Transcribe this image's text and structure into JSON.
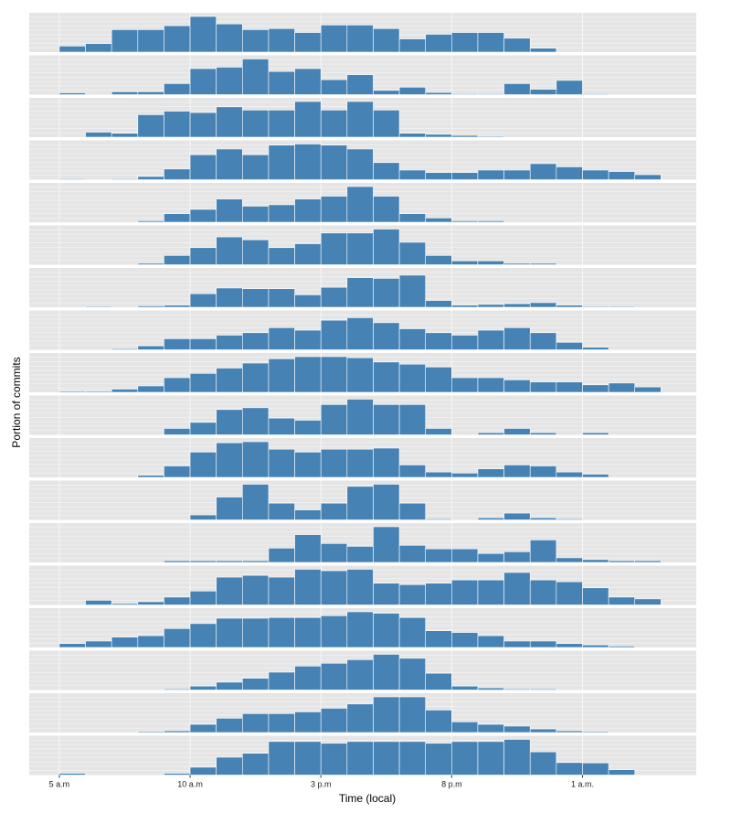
{
  "chart_data": {
    "type": "bar",
    "layout": "small-multiples",
    "xlabel": "Time (local)",
    "ylabel": "Portion of commits",
    "x_ticks": [
      {
        "label": "5 a.m",
        "hour": 5
      },
      {
        "label": "10 a.m",
        "hour": 10
      },
      {
        "label": "3 p.m",
        "hour": 15
      },
      {
        "label": "8 p.m",
        "hour": 20
      },
      {
        "label": "1 a.m.",
        "hour": 25
      }
    ],
    "bins_start_hour": 5,
    "bins_end_hour": 28,
    "ylim": [
      0,
      1
    ],
    "grid": true,
    "colors": {
      "bar": "#4682b4",
      "panel_bg": "#e5e5e5",
      "grid": "#f5f5f5"
    },
    "series": [
      {
        "values": [
          0.17,
          0.24,
          0.63,
          0.63,
          0.74,
          1.0,
          0.79,
          0.63,
          0.66,
          0.55,
          0.76,
          0.76,
          0.66,
          0.37,
          0.5,
          0.55,
          0.55,
          0.39,
          0.11,
          0,
          0,
          0,
          0
        ]
      },
      {
        "values": [
          0.05,
          0,
          0.08,
          0.08,
          0.31,
          0.73,
          0.77,
          1.0,
          0.65,
          0.73,
          0.42,
          0.56,
          0.12,
          0.21,
          0.06,
          0.02,
          0.02,
          0.31,
          0.15,
          0.4,
          0.02,
          0,
          0
        ]
      },
      {
        "values": [
          0,
          0.14,
          0.11,
          0.63,
          0.73,
          0.69,
          0.85,
          0.76,
          0.76,
          1.0,
          0.76,
          1.0,
          0.76,
          0.11,
          0.08,
          0.05,
          0.02,
          0,
          0,
          0,
          0,
          0,
          0
        ]
      },
      {
        "values": [
          0.02,
          0,
          0.02,
          0.09,
          0.3,
          0.7,
          0.86,
          0.7,
          0.97,
          1.0,
          0.97,
          0.86,
          0.48,
          0.27,
          0.2,
          0.2,
          0.27,
          0.27,
          0.45,
          0.36,
          0.27,
          0.23,
          0.14
        ]
      },
      {
        "values": [
          0,
          0,
          0,
          0.04,
          0.24,
          0.36,
          0.65,
          0.45,
          0.49,
          0.65,
          0.73,
          1.0,
          0.73,
          0.24,
          0.12,
          0.04,
          0.04,
          0,
          0,
          0,
          0,
          0,
          0
        ]
      },
      {
        "values": [
          0,
          0,
          0,
          0.04,
          0.26,
          0.48,
          0.78,
          0.7,
          0.48,
          0.59,
          0.89,
          0.89,
          1.0,
          0.63,
          0.26,
          0.11,
          0.11,
          0.04,
          0.04,
          0,
          0,
          0,
          0
        ]
      },
      {
        "values": [
          0,
          0.02,
          0,
          0.04,
          0.06,
          0.38,
          0.54,
          0.52,
          0.52,
          0.35,
          0.56,
          0.83,
          0.81,
          0.9,
          0.19,
          0.06,
          0.08,
          0.1,
          0.13,
          0.06,
          0.02,
          0.02,
          0
        ]
      },
      {
        "values": [
          0,
          0,
          0.03,
          0.11,
          0.31,
          0.31,
          0.41,
          0.48,
          0.62,
          0.55,
          0.83,
          0.9,
          0.76,
          0.59,
          0.48,
          0.41,
          0.55,
          0.62,
          0.48,
          0.21,
          0.07,
          0,
          0
        ]
      },
      {
        "values": [
          0.03,
          0.03,
          0.09,
          0.18,
          0.41,
          0.53,
          0.68,
          0.82,
          0.94,
          1.0,
          1.0,
          0.97,
          0.85,
          0.79,
          0.71,
          0.41,
          0.41,
          0.35,
          0.29,
          0.29,
          0.21,
          0.26,
          0.15
        ]
      },
      {
        "values": [
          0,
          0,
          0,
          0,
          0.18,
          0.35,
          0.71,
          0.76,
          0.47,
          0.41,
          0.85,
          1.0,
          0.85,
          0.85,
          0.18,
          0,
          0.06,
          0.18,
          0.06,
          0,
          0.06,
          0,
          0
        ]
      },
      {
        "values": [
          0,
          0,
          0,
          0.06,
          0.32,
          0.71,
          0.97,
          1.0,
          0.79,
          0.71,
          0.79,
          0.79,
          0.82,
          0.35,
          0.15,
          0.12,
          0.24,
          0.35,
          0.32,
          0.15,
          0.09,
          0,
          0
        ]
      },
      {
        "values": [
          0,
          0,
          0,
          0,
          0,
          0.14,
          0.64,
          1.0,
          0.47,
          0.28,
          0.47,
          0.94,
          1.0,
          0.47,
          0.03,
          0,
          0.06,
          0.19,
          0.06,
          0.03,
          0,
          0,
          0
        ]
      },
      {
        "values": [
          0,
          0,
          0,
          0,
          0.05,
          0.05,
          0.05,
          0.05,
          0.4,
          0.78,
          0.53,
          0.45,
          1.0,
          0.48,
          0.38,
          0.38,
          0.25,
          0.3,
          0.63,
          0.13,
          0.08,
          0.05,
          0.05
        ]
      },
      {
        "values": [
          0,
          0.13,
          0.04,
          0.09,
          0.22,
          0.39,
          0.78,
          0.83,
          0.78,
          1.0,
          0.96,
          1.0,
          0.61,
          0.57,
          0.61,
          0.7,
          0.7,
          0.91,
          0.7,
          0.65,
          0.48,
          0.22,
          0.17
        ]
      },
      {
        "values": [
          0.11,
          0.18,
          0.29,
          0.33,
          0.53,
          0.67,
          0.82,
          0.82,
          0.84,
          0.84,
          0.89,
          1.0,
          0.96,
          0.84,
          0.47,
          0.42,
          0.33,
          0.18,
          0.18,
          0.11,
          0.07,
          0.04,
          0
        ]
      },
      {
        "values": [
          0,
          0,
          0,
          0,
          0.03,
          0.11,
          0.22,
          0.33,
          0.5,
          0.67,
          0.75,
          0.85,
          1.0,
          0.89,
          0.47,
          0.11,
          0.06,
          0.03,
          0.03,
          0,
          0,
          0,
          0
        ]
      },
      {
        "values": [
          0,
          0,
          0,
          0.03,
          0.05,
          0.23,
          0.4,
          0.53,
          0.53,
          0.58,
          0.68,
          0.8,
          1.0,
          1.0,
          0.63,
          0.3,
          0.23,
          0.18,
          0.1,
          0.05,
          0.03,
          0,
          0
        ]
      },
      {
        "values": [
          0.05,
          0,
          0,
          0,
          0.05,
          0.22,
          0.5,
          0.61,
          0.94,
          0.94,
          0.89,
          0.94,
          0.94,
          0.94,
          0.89,
          0.94,
          0.94,
          1.0,
          0.65,
          0.35,
          0.34,
          0.15,
          0
        ]
      }
    ]
  }
}
